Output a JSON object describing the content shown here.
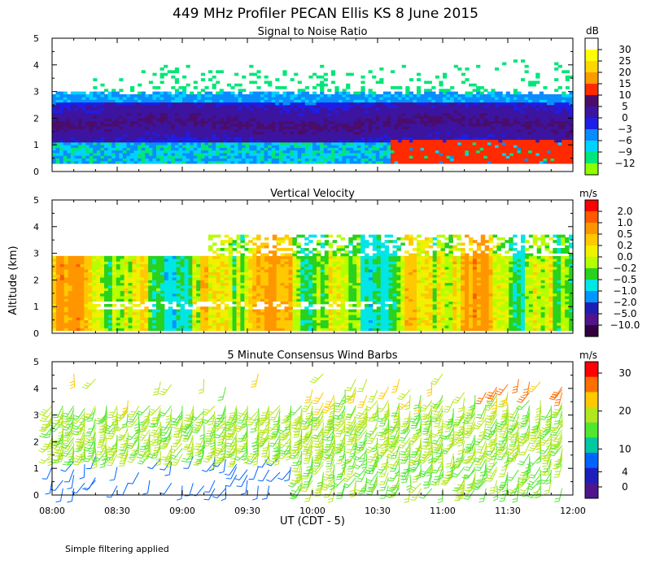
{
  "figure": {
    "title": "449 MHz Profiler PECAN Ellis KS   8 June 2015",
    "ylabel": "Altitude (km)",
    "xlabel": "UT  (CDT - 5)",
    "footnote": "Simple filtering applied"
  },
  "colors": {
    "background": "#ffffff",
    "axis": "#000000"
  },
  "chart_data": [
    {
      "type": "heatmap",
      "title": "Signal to Noise Ratio",
      "units": "dB",
      "xlabel": "UT  (CDT - 5)",
      "ylabel": "Altitude (km)",
      "x_ticks": [
        "08:00",
        "08:30",
        "09:00",
        "09:30",
        "10:00",
        "10:30",
        "11:00",
        "11:30",
        "12:00"
      ],
      "xlim_hours": [
        8,
        12
      ],
      "y_ticks": [
        "0",
        "1",
        "2",
        "3",
        "4",
        "5"
      ],
      "ylim": [
        0,
        5
      ],
      "colorbar": {
        "labels": [
          "30",
          "25",
          "20",
          "15",
          "10",
          "5",
          "0",
          "−3",
          "−6",
          "−9",
          "−12"
        ],
        "colors": [
          "#ffffff",
          "#ffff00",
          "#ffd700",
          "#ff9900",
          "#ff2a00",
          "#4b0d6b",
          "#3c14a0",
          "#1e1ee6",
          "#0a8cff",
          "#00d2ff",
          "#00e678",
          "#8cff00"
        ]
      },
      "layers": [
        {
          "name": "lower boundary-layer echo (~0.3-2.9 km)",
          "t_start": 8.0,
          "t_end": 12.0,
          "alt_bottom": 0.3,
          "alt_top": 2.9,
          "level_db": -6
        },
        {
          "name": "strong echo band (~1.2-2.3 km, dark purple)",
          "t_start": 8.0,
          "t_end": 12.0,
          "alt_bottom": 1.2,
          "alt_top": 2.3,
          "level_db": 5
        },
        {
          "name": "high SNR region (red, 10-15 dB)",
          "t_start": 10.6,
          "t_end": 12.0,
          "alt_bottom": 0.3,
          "alt_top": 1.1,
          "level_db": 12
        },
        {
          "name": "upper scattered echoes",
          "t_start": 8.3,
          "t_end": 12.0,
          "alt_bottom": 2.9,
          "alt_top": 4.2,
          "level_db": -12
        }
      ]
    },
    {
      "type": "heatmap",
      "title": "Vertical Velocity",
      "units": "m/s",
      "xlabel": "UT  (CDT - 5)",
      "ylabel": "Altitude (km)",
      "x_ticks": [
        "08:00",
        "08:30",
        "09:00",
        "09:30",
        "10:00",
        "10:30",
        "11:00",
        "11:30",
        "12:00"
      ],
      "xlim_hours": [
        8,
        12
      ],
      "y_ticks": [
        "0",
        "1",
        "2",
        "3",
        "4",
        "5"
      ],
      "ylim": [
        0,
        5
      ],
      "colorbar": {
        "labels": [
          "2.0",
          "1.0",
          "0.5",
          "0.2",
          "0.0",
          "−0.2",
          "−0.5",
          "−1.0",
          "−2.0",
          "−5.0",
          "−10.0"
        ],
        "colors": [
          "#ff0000",
          "#ff5a00",
          "#ff9600",
          "#ffc800",
          "#f0f000",
          "#b4ff00",
          "#28d21e",
          "#00e6e6",
          "#0096ff",
          "#1e1eb4",
          "#50148c",
          "#32003c"
        ]
      },
      "layers": [
        {
          "name": "boundary layer data region",
          "t_start": 8.0,
          "t_end": 12.0,
          "alt_bottom": 0.1,
          "alt_top": 2.9,
          "velocity_range": [
            -1.0,
            1.0
          ]
        },
        {
          "name": "upper data region",
          "t_start": 9.2,
          "t_end": 12.0,
          "alt_bottom": 2.9,
          "alt_top": 3.6,
          "velocity_range": [
            -0.5,
            0.5
          ]
        }
      ]
    },
    {
      "type": "scatter",
      "title": "5 Minute Consensus Wind Barbs",
      "units": "m/s",
      "xlabel": "UT  (CDT - 5)",
      "ylabel": "Altitude (km)",
      "x_ticks": [
        "08:00",
        "08:30",
        "09:00",
        "09:30",
        "10:00",
        "10:30",
        "11:00",
        "11:30",
        "12:00"
      ],
      "xlim_hours": [
        8,
        12
      ],
      "y_ticks": [
        "0",
        "1",
        "2",
        "3",
        "4",
        "5"
      ],
      "ylim": [
        0,
        5
      ],
      "colorbar": {
        "labels": [
          "30",
          "20",
          "10",
          "4",
          "0"
        ],
        "label_values": [
          30,
          20,
          10,
          4,
          0
        ],
        "colors": [
          "#ff0000",
          "#ff6e00",
          "#ffc800",
          "#b4e61e",
          "#50e632",
          "#00c8a0",
          "#0064ff",
          "#1e1ebe",
          "#50148c"
        ]
      },
      "wind_regimes": [
        {
          "alt_range_km": [
            1.5,
            3.4
          ],
          "speed_ms": 12,
          "note": "dominant southwesterly flow, green barbs"
        },
        {
          "alt_range_km": [
            0.2,
            1.5
          ],
          "speed_ms": 3,
          "note": "weak light winds, blue/purple barbs before 09:50"
        },
        {
          "alt_range_km": [
            3.4,
            4.6
          ],
          "speed_ms": 18,
          "note": "stronger orange barbs after 10:00"
        }
      ]
    }
  ]
}
